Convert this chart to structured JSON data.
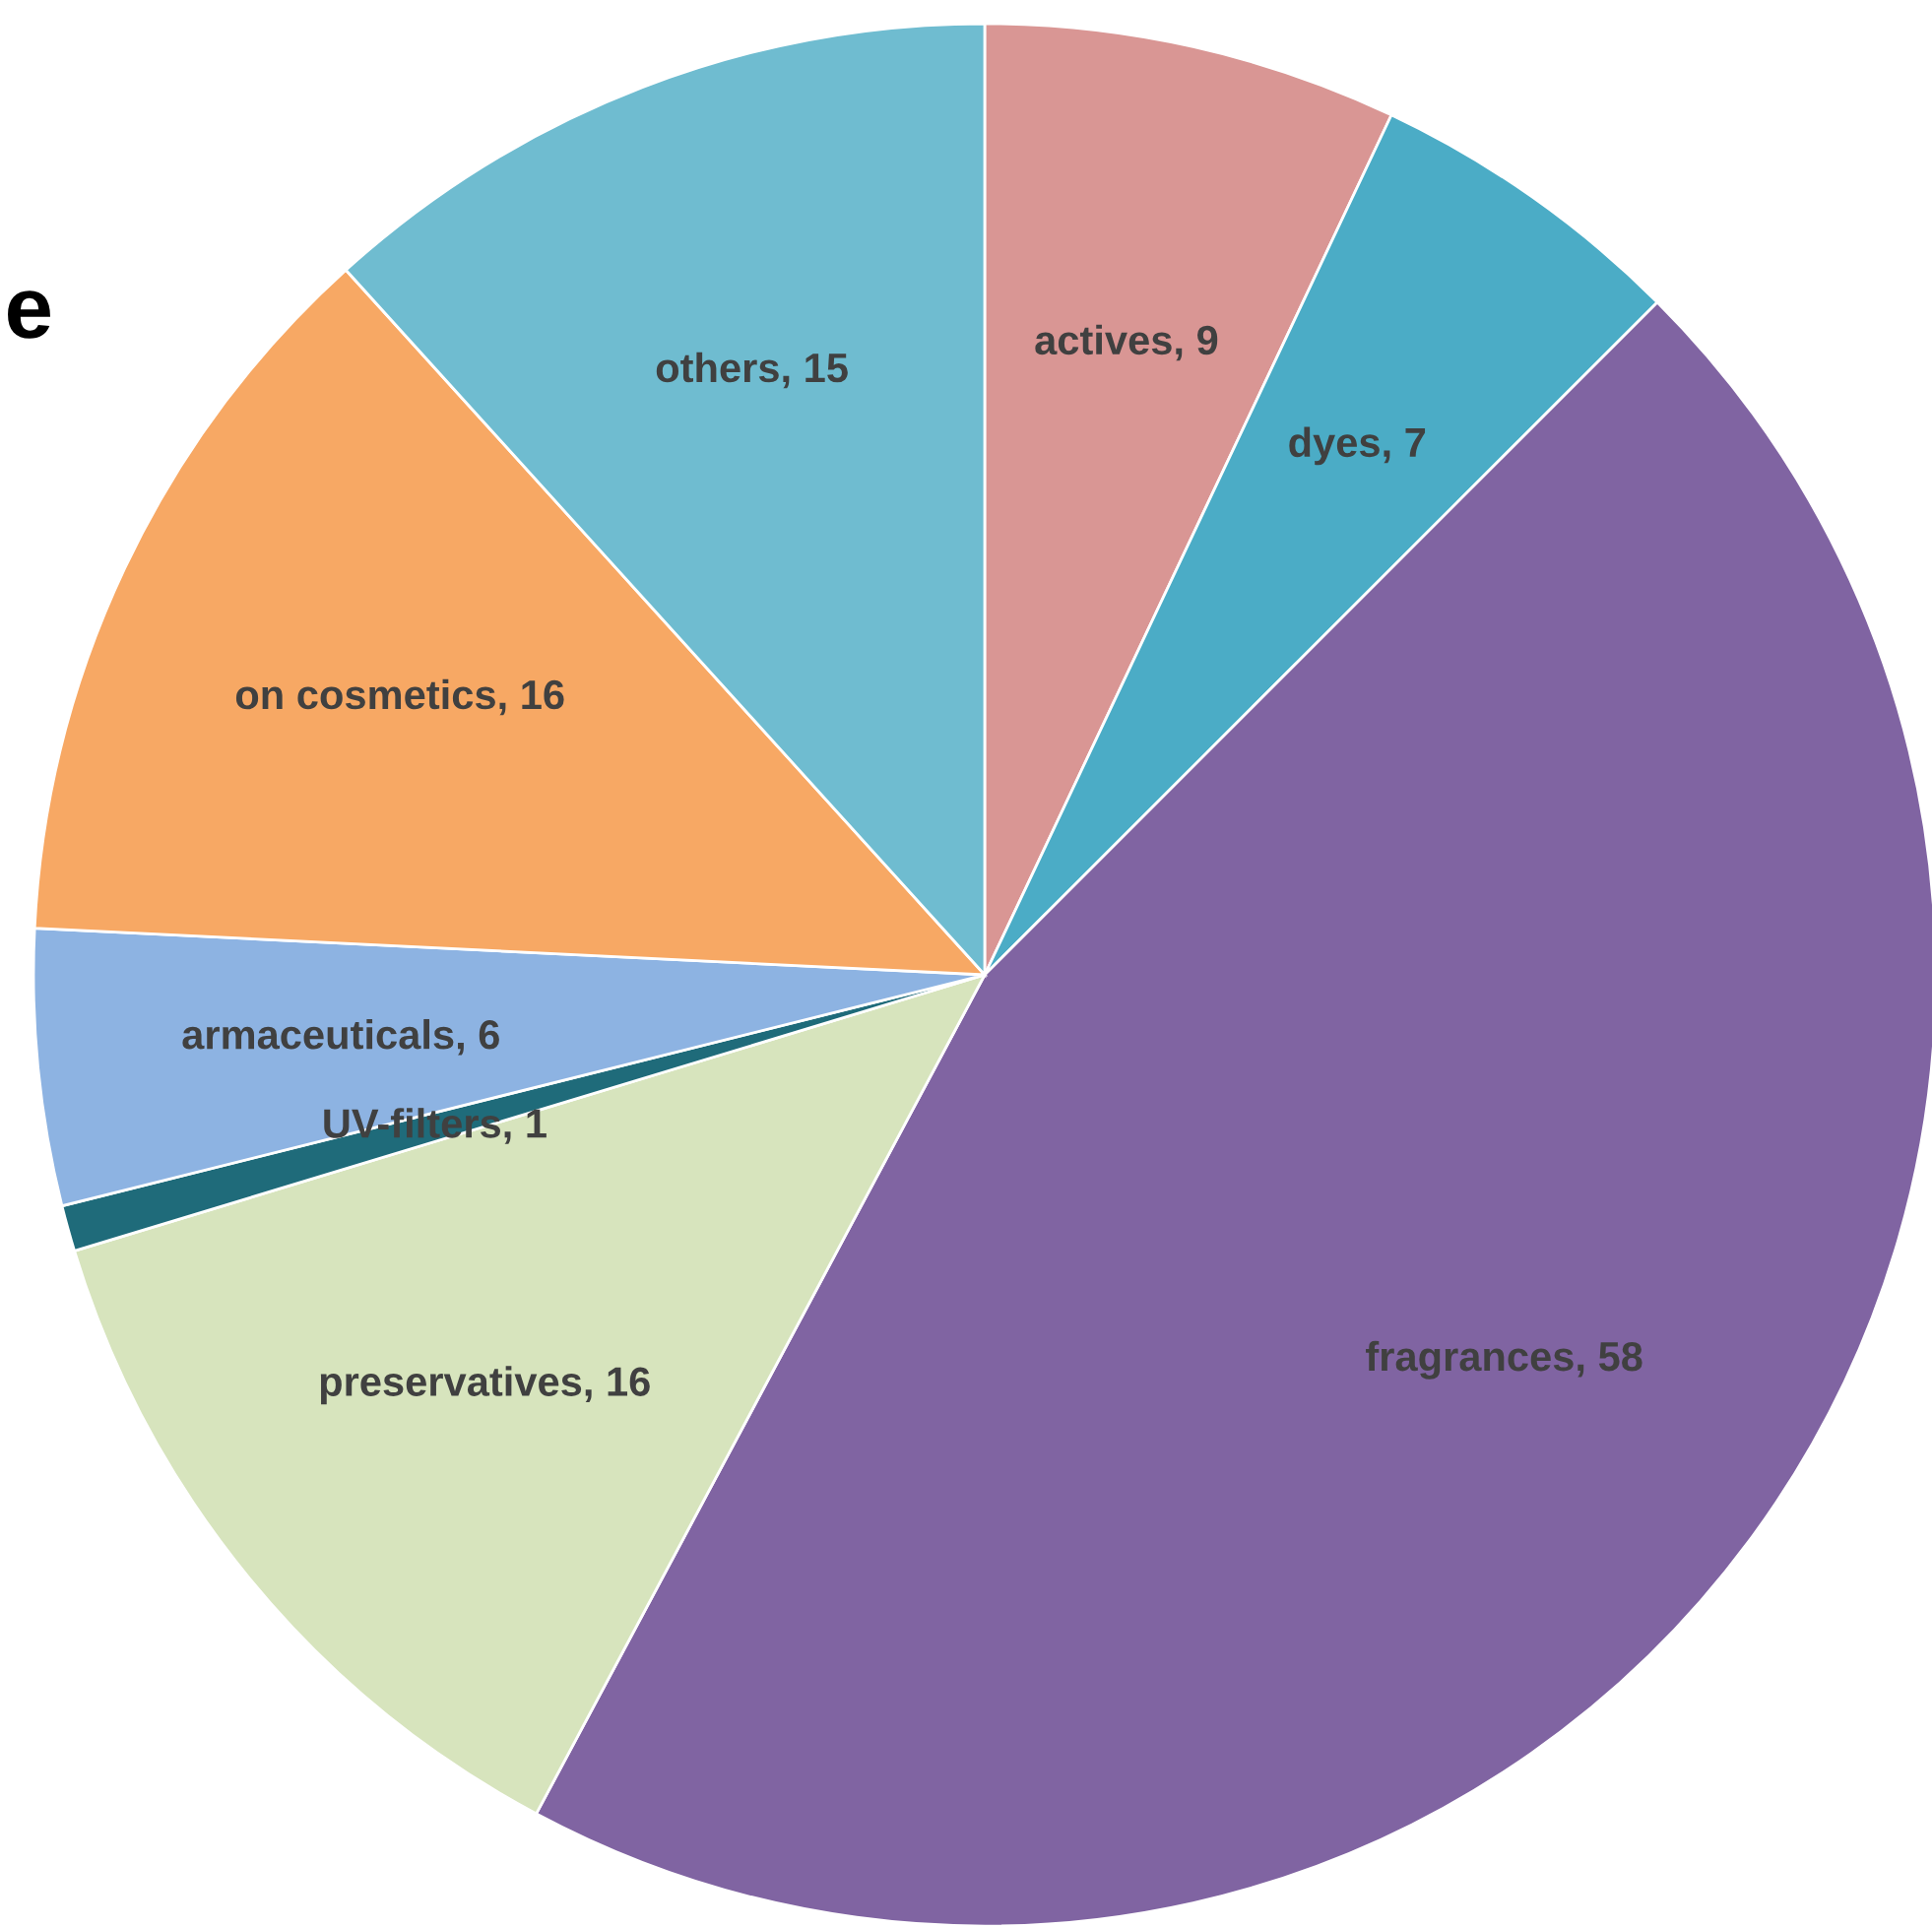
{
  "chart_data": {
    "type": "pie",
    "categories": [
      "actives, 9",
      "dyes, 7",
      "fragrances, 58",
      "preservatives, 16",
      "UV-filters, 1",
      "armaceuticals, 6",
      "on cosmetics, 16",
      "others, 15"
    ],
    "values": [
      9,
      7,
      58,
      16,
      1,
      6,
      16,
      15
    ],
    "colors": [
      "#d99694",
      "#4bacc6",
      "#8064a2",
      "#d7e4bd",
      "#1f6b7a",
      "#8db3e2",
      "#f7a864",
      "#6fbcd0"
    ],
    "annotations": [
      "e"
    ]
  }
}
